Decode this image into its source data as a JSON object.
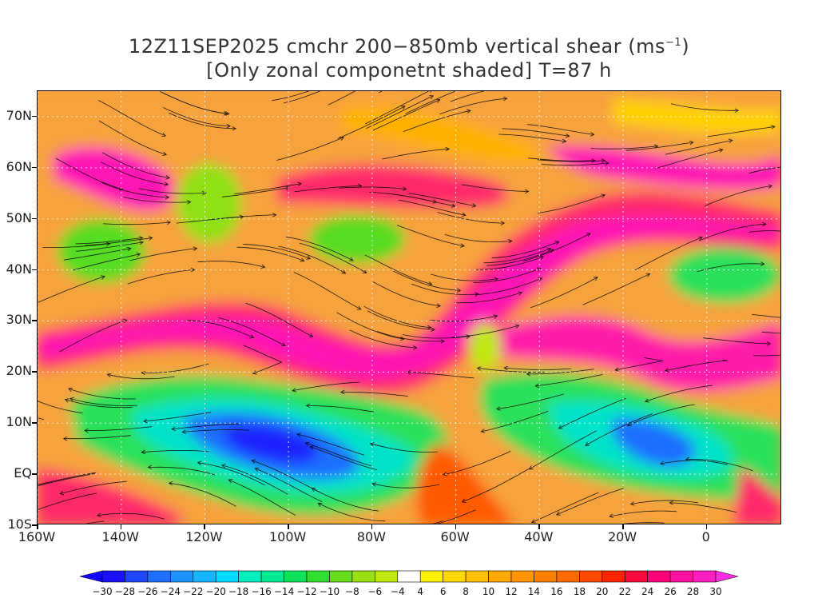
{
  "title": {
    "line1_prefix": "12Z11SEP2025 cmchr 200−850mb vertical shear (ms",
    "line1_sup": "−1",
    "line1_suffix": ")",
    "line2": "[Only zonal componetnt shaded] T=87 h"
  },
  "map": {
    "region": "North Atlantic / Eastern Pacific",
    "overlay": "streamlines of shear vector",
    "lat_labels": [
      "70N",
      "60N",
      "50N",
      "40N",
      "30N",
      "20N",
      "10N",
      "EQ",
      "10S"
    ],
    "lon_labels": [
      "160W",
      "140W",
      "120W",
      "100W",
      "80W",
      "60W",
      "40W",
      "20W",
      "0"
    ]
  },
  "colorbar": {
    "labels": [
      "−30",
      "−28",
      "−26",
      "−24",
      "−22",
      "−20",
      "−18",
      "−16",
      "−14",
      "−12",
      "−10",
      "−8",
      "−6",
      "−4",
      "4",
      "6",
      "8",
      "10",
      "12",
      "14",
      "16",
      "18",
      "20",
      "22",
      "24",
      "26",
      "28",
      "30"
    ],
    "colors": [
      "#1a12ff",
      "#1c46ff",
      "#1e6fff",
      "#1e93ff",
      "#14b6ff",
      "#00dcff",
      "#00eebd",
      "#00e891",
      "#10e15a",
      "#30de30",
      "#68dd1c",
      "#98e010",
      "#c0e80c",
      "#ffffff",
      "#fff200",
      "#ffd800",
      "#ffc000",
      "#ffaa00",
      "#ff9600",
      "#ff8000",
      "#ff6a00",
      "#ff4a00",
      "#ff2400",
      "#ff0a3c",
      "#ff0078",
      "#ff10a0",
      "#ff1ec2"
    ],
    "end_low_color": "#1400ff",
    "end_high_color": "#ff2ee0"
  }
}
